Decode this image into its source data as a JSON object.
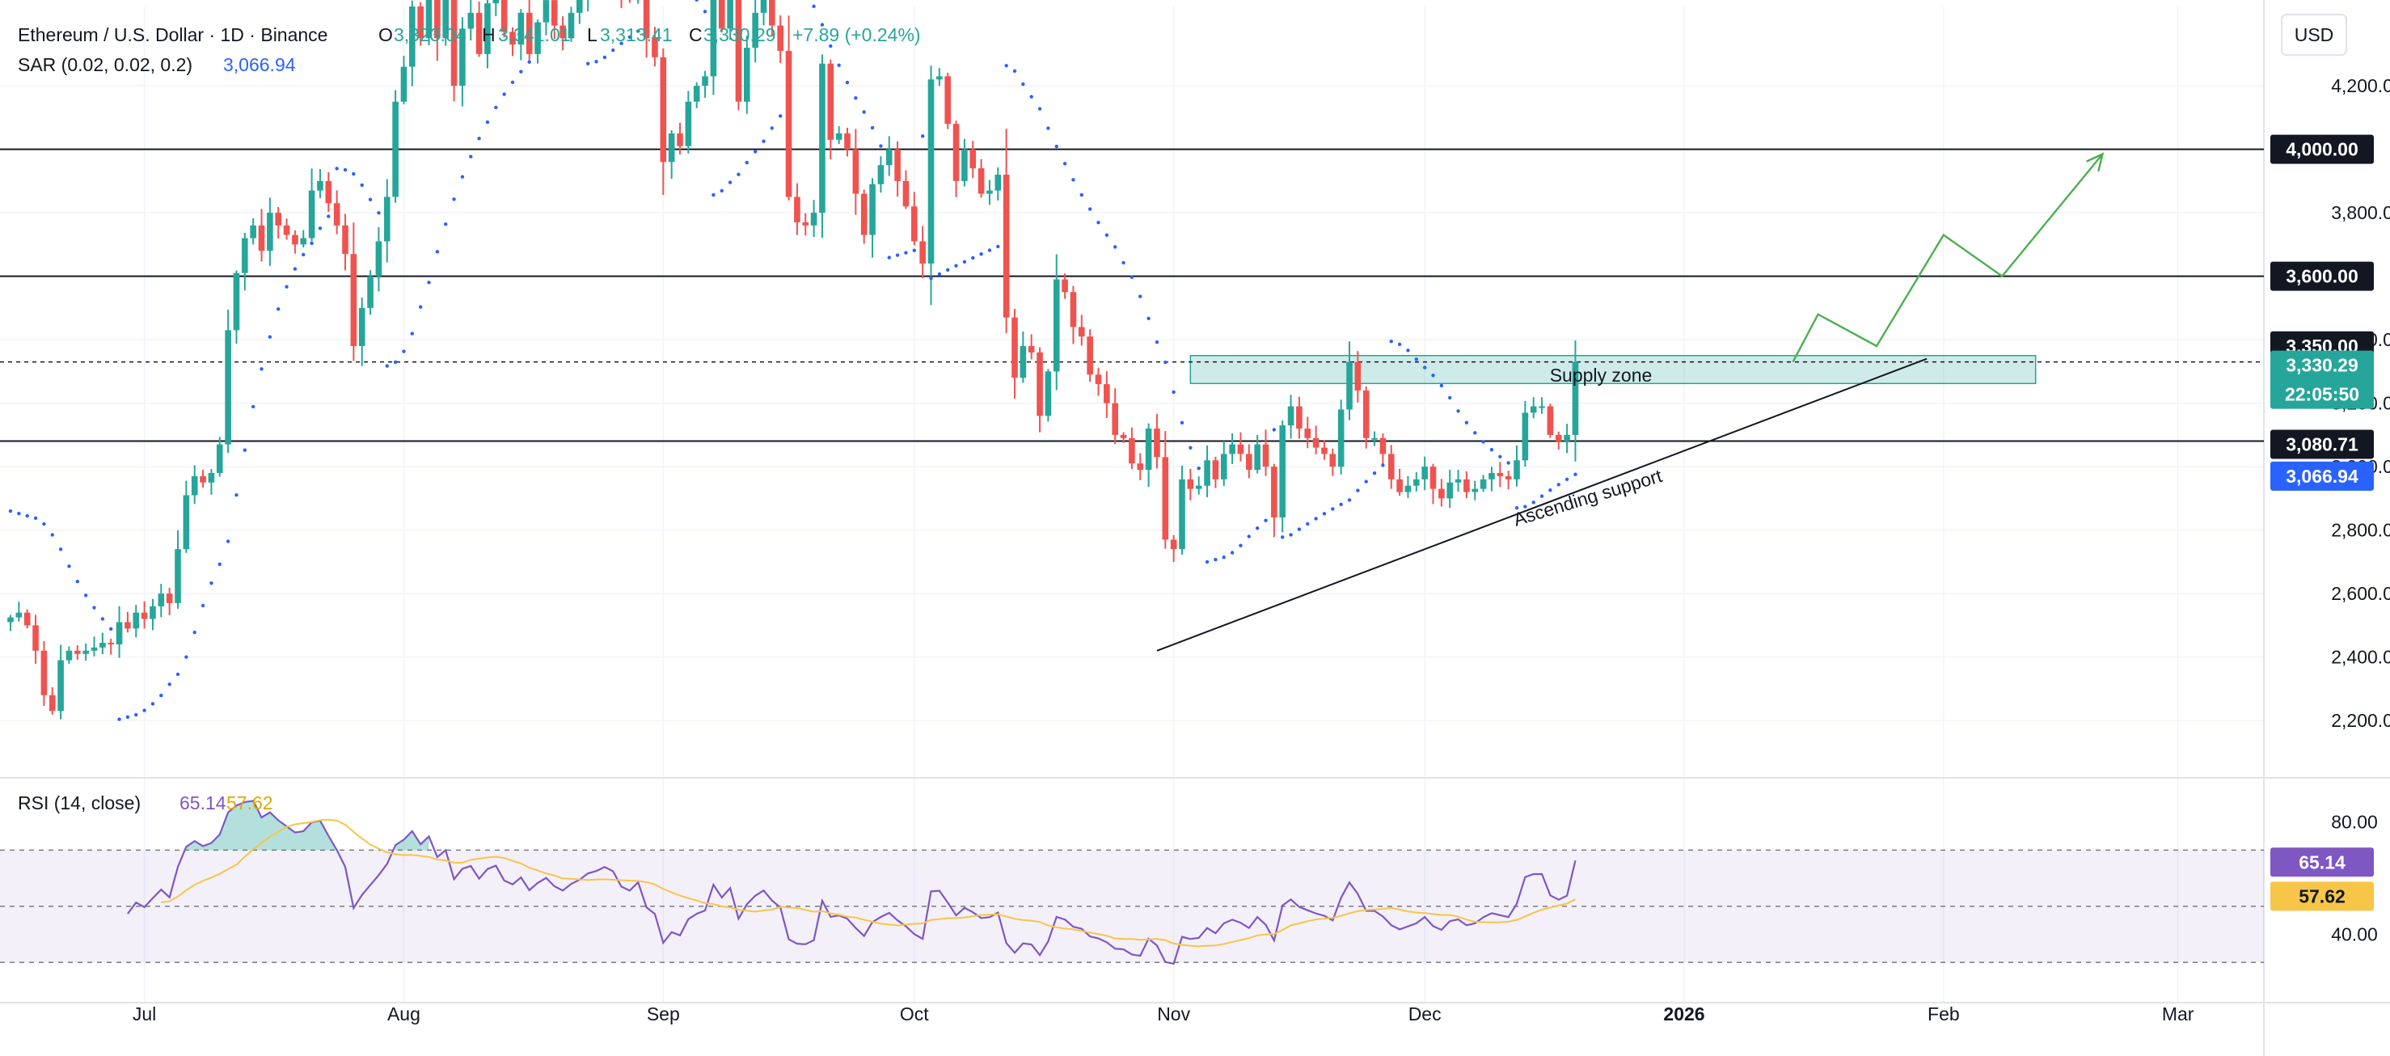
{
  "header": {
    "symbol": "Ethereum / U.S. Dollar · 1D · Binance",
    "o_label": "O",
    "o_value": "3,323.04",
    "h_label": "H",
    "h_value": "3,341.01",
    "l_label": "L",
    "l_value": "3,313.41",
    "c_label": "C",
    "c_value": "3,330.29",
    "change": "+7.89 (+0.24%)"
  },
  "indicators": {
    "sar": {
      "label": "SAR (0.02, 0.02, 0.2)",
      "value": "3,066.94",
      "color": "#2962ff"
    },
    "rsi": {
      "label": "RSI (14, close)",
      "value": "65.14",
      "ma_value": "57.62",
      "color": "#7e57c2",
      "ma_color": "#f7c548"
    }
  },
  "currency": "USD",
  "annotations": {
    "supply_zone": "Supply zone",
    "ascending_support": "Ascending support"
  },
  "price_tags": {
    "level_4000": "4,000.00",
    "level_3600": "3,600.00",
    "level_3350": "3,350.00",
    "last_price": "3,330.29",
    "countdown": "22:05:50",
    "level_3080": "3,080.71",
    "sar_value": "3,066.94",
    "rsi_value": "65.14",
    "rsi_ma_value": "57.62"
  },
  "colors": {
    "up": "#26a69a",
    "down": "#ef5350",
    "sar": "#2962ff",
    "rsi": "#7e57c2",
    "rsi_ma": "#f7c548",
    "supply_zone": "#26a69a",
    "projection": "#4caf50",
    "horizontal_level": "#131722"
  },
  "chart_data": [
    {
      "type": "candlestick",
      "title": "Ethereum / U.S. Dollar · 1D · Binance",
      "ylim": [
        2050,
        4450
      ],
      "y_ticks": [
        2200,
        2400,
        2600,
        2800,
        3000,
        3200,
        3400,
        3600,
        3800,
        4000,
        4200
      ],
      "y_tick_labels": [
        "2,200.00",
        "2,400.00",
        "2,600.00",
        "2,800.00",
        "3,000.00",
        "3,200.00",
        "3,400.00",
        "3,600.00",
        "3,800.00",
        "4,000.00",
        "4,200.00"
      ],
      "x_tick_labels": [
        {
          "date": "2025-07-01",
          "label": "Jul"
        },
        {
          "date": "2025-08-01",
          "label": "Aug"
        },
        {
          "date": "2025-09-01",
          "label": "Sep"
        },
        {
          "date": "2025-10-01",
          "label": "Oct"
        },
        {
          "date": "2025-11-01",
          "label": "Nov"
        },
        {
          "date": "2025-12-01",
          "label": "Dec"
        },
        {
          "date": "2026-01-01",
          "label": "2026"
        },
        {
          "date": "2026-02-01",
          "label": "Feb"
        },
        {
          "date": "2026-03-01",
          "label": "Mar"
        }
      ],
      "start_date": "2025-06-15",
      "closes": [
        2525,
        2540,
        2500,
        2420,
        2280,
        2230,
        2390,
        2420,
        2410,
        2420,
        2430,
        2445,
        2440,
        2510,
        2490,
        2540,
        2520,
        2560,
        2600,
        2570,
        2740,
        2910,
        2970,
        2950,
        2980,
        3070,
        3430,
        3610,
        3720,
        3760,
        3680,
        3800,
        3760,
        3730,
        3700,
        3720,
        3870,
        3900,
        3830,
        3760,
        3670,
        3380,
        3500,
        3600,
        3710,
        3850,
        4150,
        4260,
        4450,
        4350,
        4520,
        4350,
        4480,
        4200,
        4380,
        4430,
        4300,
        4460,
        4520,
        4370,
        4330,
        4430,
        4300,
        4400,
        4470,
        4390,
        4350,
        4430,
        4480,
        4560,
        4590,
        4640,
        4610,
        4500,
        4470,
        4550,
        4350,
        4290,
        3960,
        4050,
        4010,
        4150,
        4200,
        4230,
        4500,
        4380,
        4490,
        4150,
        4320,
        4430,
        4500,
        4390,
        4310,
        3850,
        3770,
        3760,
        3800,
        4270,
        4030,
        4050,
        4000,
        3860,
        3730,
        3890,
        3950,
        4000,
        3900,
        3820,
        3710,
        3640,
        4220,
        4230,
        4080,
        3900,
        4000,
        3940,
        3860,
        3870,
        3920,
        3470,
        3280,
        3380,
        3360,
        3160,
        3300,
        3590,
        3550,
        3440,
        3410,
        3290,
        3260,
        3200,
        3100,
        3090,
        3010,
        2990,
        3120,
        3030,
        2770,
        2740,
        2960,
        2930,
        2940,
        3020,
        2960,
        3040,
        3070,
        3040,
        2990,
        3070,
        3000,
        2840,
        3130,
        3190,
        3120,
        3090,
        3060,
        3040,
        3000,
        3180,
        3330,
        3240,
        3090,
        3090,
        3040,
        2960,
        2920,
        2940,
        2960,
        3000,
        2930,
        2900,
        2950,
        2960,
        2920,
        2930,
        2960,
        2980,
        2970,
        2960,
        3020,
        3170,
        3190,
        3190,
        3100,
        3080,
        3100,
        3330
      ],
      "series": [
        {
          "name": "SAR (0.02, 0.02, 0.2)",
          "last_value": 3066.94
        },
        {
          "name": "RSI (14, close)",
          "last_value": 65.14,
          "ma_last_value": 57.62,
          "ylim": [
            20,
            92
          ],
          "y_ticks": [
            40,
            80
          ],
          "bands": [
            30,
            50,
            70
          ]
        }
      ],
      "horizontal_levels": [
        4000,
        3600,
        3080.71
      ],
      "supply_zone": [
        3262,
        3350
      ],
      "ascending_support": [
        {
          "date": "2025-10-30",
          "price": 2420
        },
        {
          "date": "2026-01-14",
          "price": 3080
        },
        {
          "date": "2026-01-30",
          "price": 3340
        }
      ],
      "projection": [
        {
          "date": "2026-01-14",
          "price": 3330
        },
        {
          "date": "2026-01-17",
          "price": 3480
        },
        {
          "date": "2026-01-24",
          "price": 3380
        },
        {
          "date": "2026-02-01",
          "price": 3730
        },
        {
          "date": "2026-02-08",
          "price": 3600
        },
        {
          "date": "2026-02-20",
          "price": 3985
        }
      ]
    }
  ]
}
